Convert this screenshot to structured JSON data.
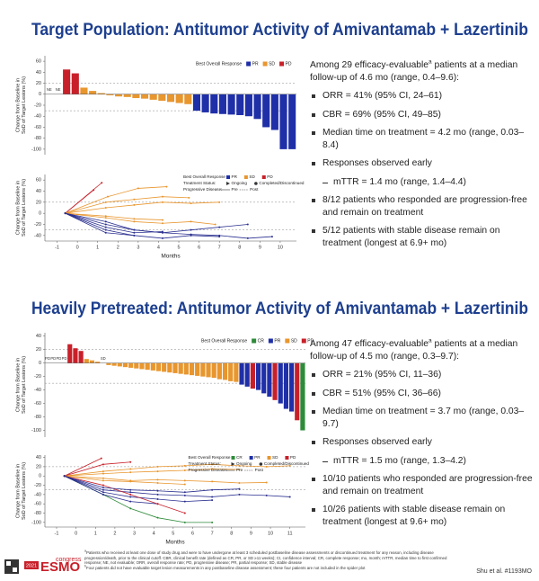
{
  "sections": [
    {
      "title": "Target Population: Antitumor Activity of Amivantamab + Lazertinib",
      "intro": "Among 29 efficacy-evaluable",
      "intro_sup": "a",
      "intro_end": " patients at a median follow-up of 4.6 mo (range, 0.4–9.6):",
      "bullets": [
        {
          "text": "ORR = 41% (95% CI, 24–61)"
        },
        {
          "text": "CBR = 69% (95% CI, 49–85)"
        },
        {
          "text": "Median time on treatment = 4.2 mo (range, 0.03–8.4)"
        },
        {
          "text": "Responses observed early",
          "items": [
            "mTTR = 1.4 mo (range, 1.4–4.4)"
          ]
        },
        {
          "text": "8/12 patients who responded are progression-free and remain on treatment"
        },
        {
          "text": "5/12 patients with stable disease remain on treatment (longest at 6.9+ mo)"
        }
      ]
    },
    {
      "title": "Heavily Pretreated: Antitumor Activity of Amivantamab + Lazertinib",
      "intro": "Among 47 efficacy-evaluable",
      "intro_sup": "a",
      "intro_end": " patients at a median follow-up of 4.5 mo (range, 0.3–9.7):",
      "bullets": [
        {
          "text": "ORR = 21% (95% CI, 11–36)"
        },
        {
          "text": "CBR = 51% (95% CI, 36–66)"
        },
        {
          "text": "Median time on treatment = 3.7 mo (range, 0.03–9.7)"
        },
        {
          "text": "Responses observed early",
          "items": [
            "mTTR = 1.5 mo (range, 1.3–4.2)"
          ]
        },
        {
          "text": "10/10 patients who responded are progression-free and remain on treatment"
        },
        {
          "text": "10/26 patients with stable disease remain on treatment (longest at 9.6+ mo)"
        }
      ]
    }
  ],
  "chart_data": [
    {
      "type": "waterfall",
      "y_label": [
        "Change from Baseline in",
        "SoD of Target Lesions (%)"
      ],
      "ylim": [
        -110,
        70
      ],
      "yticks": [
        60,
        40,
        20,
        0,
        -20,
        -40,
        -60,
        -80,
        -100
      ],
      "ref_lines": [
        20,
        -30
      ],
      "legend_title": "Best Overall Response",
      "legend": [
        {
          "name": "PR",
          "color": "#1f2fa8"
        },
        {
          "name": "SD",
          "color": "#e8962e"
        },
        {
          "name": "PD",
          "color": "#c8202a"
        }
      ],
      "values": [
        0,
        0,
        45,
        38,
        12,
        6,
        2,
        -2,
        -4,
        -5,
        -7,
        -8,
        -10,
        -12,
        -14,
        -16,
        -18,
        -30,
        -33,
        -35,
        -36,
        -37,
        -38,
        -40,
        -45,
        -60,
        -65,
        -100,
        -100
      ],
      "response": [
        "NE",
        "NE",
        "PD",
        "PD",
        "SD",
        "SD",
        "SD",
        "SD",
        "SD",
        "SD",
        "SD",
        "SD",
        "SD",
        "SD",
        "SD",
        "SD",
        "SD",
        "PR",
        "PR",
        "PR",
        "PR",
        "PR",
        "PR",
        "PR",
        "PR",
        "PR",
        "PR",
        "PR",
        "PR"
      ],
      "value_labels": [
        "NE",
        "NE",
        null,
        null,
        null,
        null,
        null,
        null,
        null,
        null,
        null,
        null,
        null,
        null,
        null,
        null,
        null,
        null,
        null,
        null,
        null,
        null,
        null,
        null,
        null,
        null,
        null,
        null,
        null
      ]
    },
    {
      "type": "spider",
      "y_label": [
        "Change from Baseline in",
        "SoD of Target Lesions (%)"
      ],
      "x_label": "Months",
      "xlim": [
        -1.6,
        10.8
      ],
      "xticks": [
        -1,
        0,
        1,
        2,
        3,
        4,
        5,
        6,
        7,
        8,
        9,
        10
      ],
      "ylim": [
        -50,
        70
      ],
      "yticks": [
        60,
        40,
        20,
        0,
        -20,
        -40
      ],
      "ref_lines": [
        20,
        -30
      ],
      "legend_groups": [
        {
          "title": "Best Overall Response",
          "items": [
            {
              "name": "PR",
              "color": "#1f2fa8"
            },
            {
              "name": "SD",
              "color": "#e8962e"
            },
            {
              "name": "PD",
              "color": "#c8202a"
            }
          ]
        },
        {
          "title": "Treatment Status:",
          "items": [
            {
              "name": "Ongoing"
            },
            {
              "name": "Completed/Discontinued"
            }
          ]
        },
        {
          "title": "Progressive Disease:",
          "items": [
            {
              "name": "Pre"
            },
            {
              "name": "Post"
            }
          ]
        }
      ],
      "series": [
        {
          "color": "#c8202a",
          "x": [
            -0.6,
            1.2
          ],
          "values": [
            0,
            55
          ]
        },
        {
          "color": "#c8202a",
          "x": [
            -0.6,
            0.8
          ],
          "values": [
            0,
            42
          ]
        },
        {
          "color": "#e8962e",
          "x": [
            -0.6,
            1.5,
            3,
            4.4
          ],
          "values": [
            0,
            30,
            45,
            48
          ]
        },
        {
          "color": "#e8962e",
          "x": [
            -0.6,
            1.4,
            2.8,
            4.2,
            5.5
          ],
          "values": [
            0,
            20,
            25,
            30,
            28
          ]
        },
        {
          "color": "#e8962e",
          "x": [
            -0.6,
            1.4,
            2.8,
            4.2,
            5.6,
            7
          ],
          "values": [
            0,
            10,
            15,
            20,
            18,
            20
          ]
        },
        {
          "color": "#e8962e",
          "x": [
            -0.6,
            1.4,
            2.8,
            4.2
          ],
          "values": [
            0,
            -5,
            -10,
            -12
          ]
        },
        {
          "color": "#e8962e",
          "x": [
            -0.6,
            1.4,
            2.8,
            4.2,
            5.6,
            6.8
          ],
          "values": [
            0,
            -8,
            -15,
            -18,
            -15,
            -20
          ]
        },
        {
          "color": "#2a2f8f",
          "x": [
            -0.6,
            1.4,
            2.8,
            4.2,
            5.6,
            7,
            8.4,
            9.6
          ],
          "values": [
            0,
            -20,
            -30,
            -35,
            -38,
            -40,
            -45,
            -42
          ]
        },
        {
          "color": "#2a2f8f",
          "x": [
            -0.6,
            1.4,
            2.8,
            4.2,
            5.6,
            7
          ],
          "values": [
            0,
            -30,
            -40,
            -45,
            -40,
            -42
          ]
        },
        {
          "color": "#2a2f8f",
          "x": [
            -0.6,
            1.4,
            2.8,
            4.2
          ],
          "values": [
            0,
            -25,
            -35,
            -33
          ]
        },
        {
          "color": "#2a2f8f",
          "x": [
            -0.6,
            1.4,
            2.8,
            4.2,
            5.6,
            7,
            8.4
          ],
          "values": [
            0,
            -15,
            -30,
            -35,
            -30,
            -25,
            -20
          ]
        },
        {
          "color": "#2a2f8f",
          "x": [
            -0.6,
            1.4,
            2.8
          ],
          "values": [
            0,
            -35,
            -40
          ]
        }
      ]
    },
    {
      "type": "waterfall",
      "y_label": [
        "Change from Baseline in",
        "SoD of Target Lesions (%)"
      ],
      "ylim": [
        -110,
        45
      ],
      "yticks": [
        40,
        20,
        0,
        -20,
        -40,
        -60,
        -80,
        -100
      ],
      "ref_lines": [
        20,
        -30
      ],
      "legend_title": "Best Overall Response",
      "legend": [
        {
          "name": "CR",
          "color": "#2e8b3a"
        },
        {
          "name": "PR",
          "color": "#1f2fa8"
        },
        {
          "name": "SD",
          "color": "#e8962e"
        },
        {
          "name": "PD",
          "color": "#c8202a"
        }
      ],
      "values": [
        0,
        0,
        0,
        0,
        28,
        22,
        18,
        6,
        4,
        2,
        0,
        -3,
        -4,
        -5,
        -6,
        -7,
        -8,
        -9,
        -10,
        -11,
        -12,
        -13,
        -14,
        -15,
        -16,
        -17,
        -18,
        -19,
        -20,
        -21,
        -22,
        -24,
        -25,
        -27,
        -28,
        -32,
        -35,
        -38,
        -40,
        -45,
        -50,
        -55,
        -60,
        -68,
        -72,
        -85,
        -100
      ],
      "response": [
        "PD",
        "PD",
        "PD",
        "PD",
        "PD",
        "PD",
        "PD",
        "SD",
        "SD",
        "SD",
        "SD",
        "SD",
        "SD",
        "SD",
        "SD",
        "SD",
        "SD",
        "SD",
        "SD",
        "SD",
        "SD",
        "SD",
        "SD",
        "SD",
        "SD",
        "SD",
        "SD",
        "SD",
        "SD",
        "SD",
        "SD",
        "SD",
        "SD",
        "SD",
        "SD",
        "PR",
        "PR",
        "PD",
        "PR",
        "PR",
        "PR",
        "PD",
        "PR",
        "PR",
        "PR",
        "PD",
        "CR"
      ],
      "value_labels": [
        "PD",
        "PD",
        "PD",
        "PD",
        null,
        null,
        null,
        null,
        null,
        null,
        "SD",
        null,
        null,
        null,
        null,
        null,
        null,
        null,
        null,
        null,
        null,
        null,
        null,
        null,
        null,
        null,
        null,
        null,
        null,
        null,
        null,
        null,
        null,
        null,
        null,
        null,
        null,
        null,
        null,
        null,
        null,
        null,
        null,
        null,
        null,
        null,
        null
      ]
    },
    {
      "type": "spider",
      "y_label": [
        "Change from Baseline in",
        "SoD of Target Lesions (%)"
      ],
      "x_label": "Months",
      "xlim": [
        -1.6,
        11.8
      ],
      "xticks": [
        -1,
        0,
        1,
        2,
        3,
        4,
        5,
        6,
        7,
        8,
        9,
        10,
        11
      ],
      "ylim": [
        -110,
        45
      ],
      "yticks": [
        40,
        20,
        0,
        -20,
        -40,
        -60,
        -80,
        -100
      ],
      "ref_lines": [
        20,
        -30
      ],
      "legend_groups": [
        {
          "title": "Best Overall Response",
          "items": [
            {
              "name": "CR",
              "color": "#2e8b3a"
            },
            {
              "name": "PR",
              "color": "#1f2fa8"
            },
            {
              "name": "SD",
              "color": "#e8962e"
            },
            {
              "name": "PD",
              "color": "#c8202a"
            }
          ]
        },
        {
          "title": "Treatment Status:",
          "items": [
            {
              "name": "Ongoing"
            },
            {
              "name": "Completed/Discontinued"
            }
          ]
        },
        {
          "title": "Progressive Disease:",
          "items": [
            {
              "name": "Pre"
            },
            {
              "name": "Post"
            }
          ]
        }
      ],
      "series": [
        {
          "color": "#2e8b3a",
          "x": [
            -0.6,
            1.4,
            2.8,
            4.2,
            5.6,
            7
          ],
          "values": [
            0,
            -40,
            -70,
            -90,
            -100,
            -100
          ]
        },
        {
          "color": "#c8202a",
          "x": [
            -0.6,
            1.3
          ],
          "values": [
            0,
            38
          ]
        },
        {
          "color": "#c8202a",
          "x": [
            -0.6,
            1.4,
            2.8
          ],
          "values": [
            0,
            25,
            30
          ]
        },
        {
          "color": "#e8962e",
          "x": [
            -0.6,
            1.4,
            2.8,
            4.2,
            5.6,
            7,
            8.4,
            9.8,
            11
          ],
          "values": [
            0,
            10,
            15,
            20,
            22,
            25,
            22,
            20,
            22
          ]
        },
        {
          "color": "#e8962e",
          "x": [
            -0.6,
            1.4,
            2.8,
            4.2,
            5.6,
            7,
            8.4
          ],
          "values": [
            0,
            5,
            8,
            10,
            12,
            15,
            14
          ]
        },
        {
          "color": "#e8962e",
          "x": [
            -0.6,
            1.4,
            2.8,
            4.2,
            5.6
          ],
          "values": [
            0,
            -10,
            -12,
            -15,
            -18
          ]
        },
        {
          "color": "#e8962e",
          "x": [
            -0.6,
            1.4,
            2.8,
            4.2,
            5.6,
            7,
            8.4,
            9.8
          ],
          "values": [
            0,
            -5,
            -10,
            -8,
            -10,
            -12,
            -15,
            -14
          ]
        },
        {
          "color": "#2a2f8f",
          "x": [
            -0.6,
            1.4,
            2.8,
            4.2,
            5.6,
            7,
            8.4,
            9.8,
            11
          ],
          "values": [
            0,
            -30,
            -35,
            -40,
            -42,
            -45,
            -40,
            -42,
            -45
          ]
        },
        {
          "color": "#2a2f8f",
          "x": [
            -0.6,
            1.4,
            2.8,
            4.2,
            5.6,
            7
          ],
          "values": [
            0,
            -35,
            -45,
            -50,
            -55,
            -52
          ]
        },
        {
          "color": "#2a2f8f",
          "x": [
            -0.6,
            1.4,
            2.8,
            4.2
          ],
          "values": [
            0,
            -40,
            -55,
            -60
          ]
        },
        {
          "color": "#c8202a",
          "x": [
            -0.6,
            1.4,
            2.8,
            4.2,
            5.6
          ],
          "values": [
            0,
            -20,
            -40,
            -60,
            -80
          ]
        },
        {
          "color": "#2a2f8f",
          "x": [
            -0.6,
            1.4,
            2.8,
            4.2,
            5.6,
            7,
            8.4
          ],
          "values": [
            0,
            -25,
            -30,
            -32,
            -35,
            -30,
            -28
          ]
        }
      ]
    }
  ],
  "footer": {
    "year": "2021",
    "brand": "ESMO",
    "event": "congress",
    "footnotes": [
      {
        "mark": "a",
        "text": "Patients who received at least one dose of study drug and were to have undergone at least 3 scheduled postbaseline disease assessments or discontinued treatment for any reason, including disease progression/death, prior to the clinical cutoff. CBR, clinical benefit rate (defined as CR, PR, or SD ≥11 weeks); CI, confidence interval; CR, complete response; mo, month; mTTR, median time to first confirmed response; NE, not evaluable; ORR, overall response rate; PD, progressive disease; PR, partial response; SD, stable disease"
      },
      {
        "mark": "b",
        "text": "Four patients did not have evaluable target lesion measurements in any postbaseline disease assessment; these four patients are not included in the spider plot"
      }
    ],
    "citation": "Shu et al. #1193MO"
  }
}
